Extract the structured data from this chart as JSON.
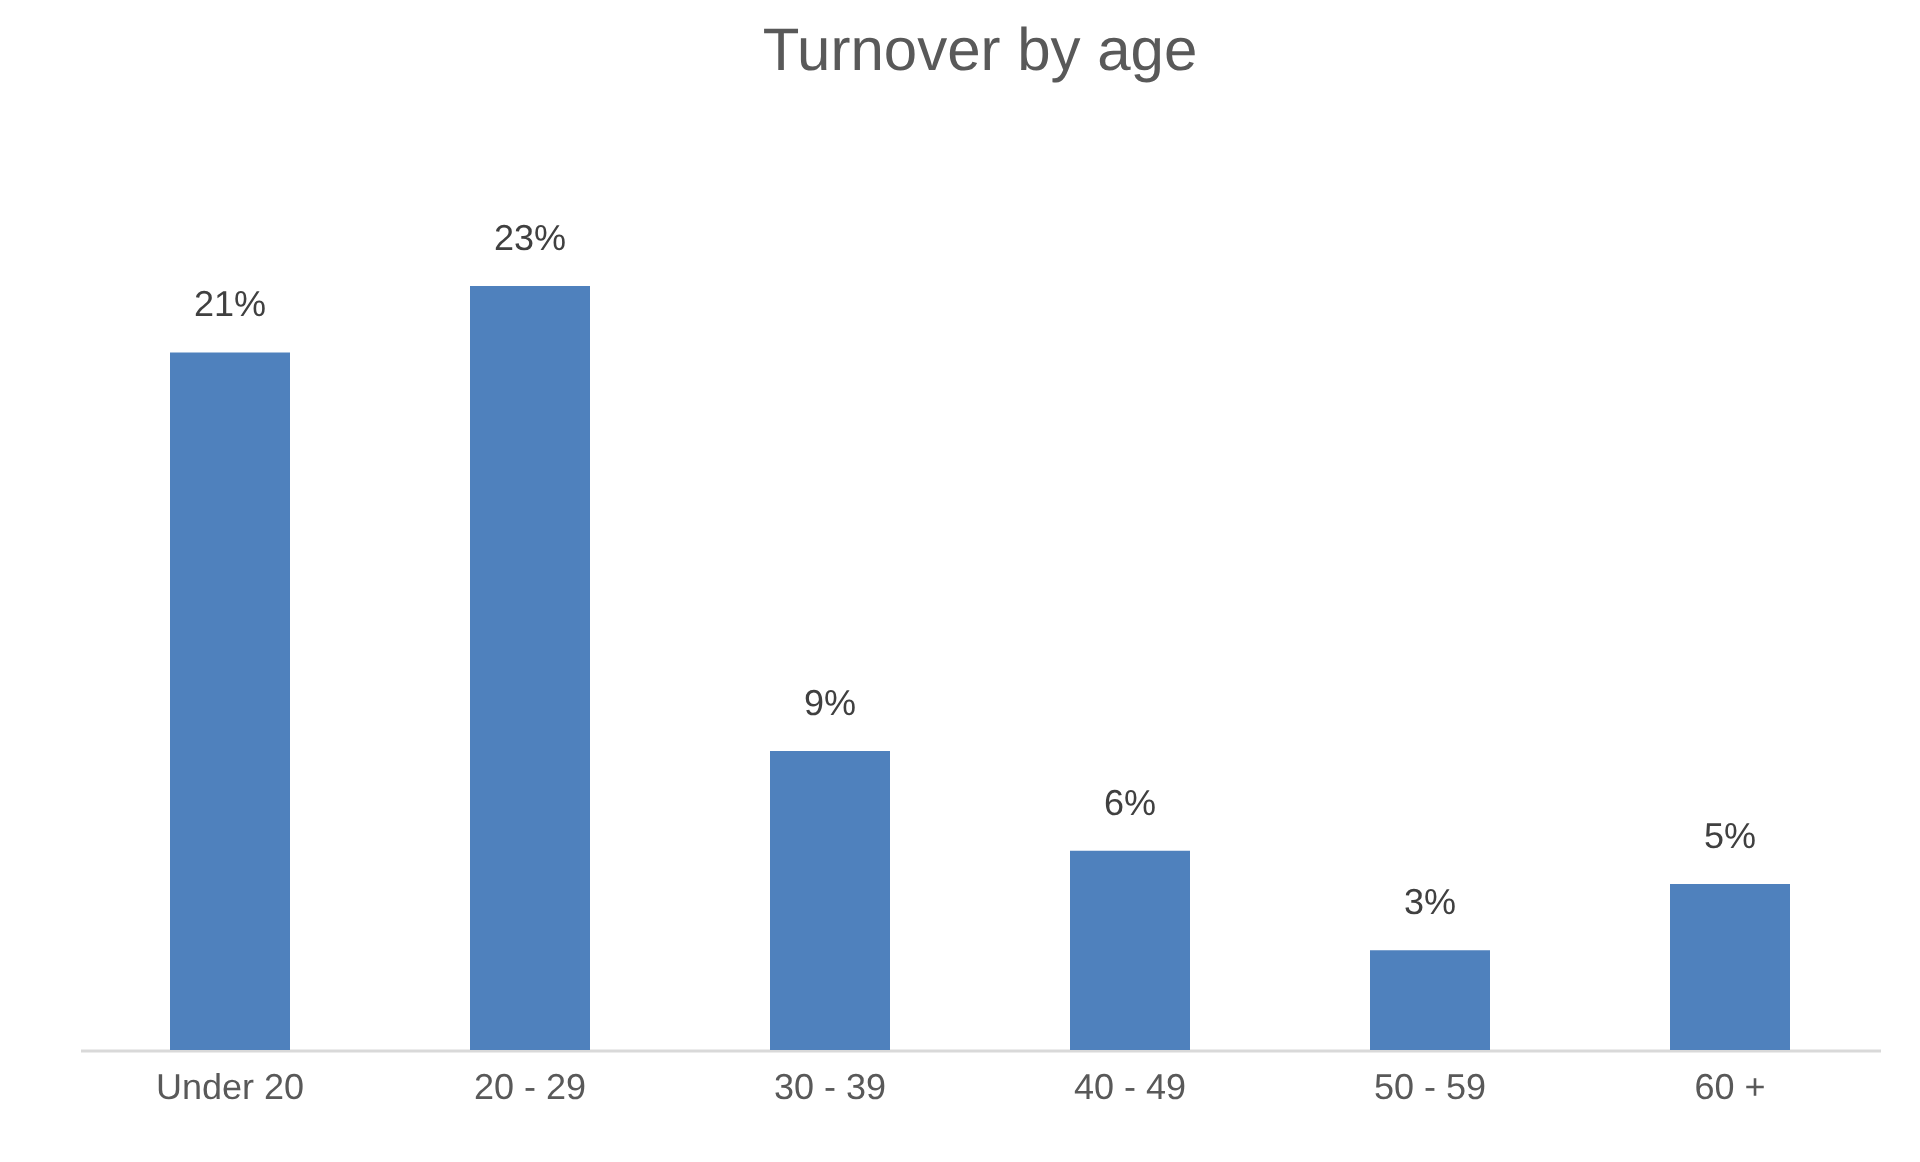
{
  "chart_data": {
    "type": "bar",
    "title": "Turnover by age",
    "categories": [
      "Under 20",
      "20 - 29",
      "30 - 39",
      "40 - 49",
      "50 - 59",
      "60 +"
    ],
    "values": [
      21,
      23,
      9,
      6,
      3,
      5
    ],
    "value_labels": [
      "21%",
      "23%",
      "9%",
      "6%",
      "3%",
      "5%"
    ],
    "color": "#4f81bd"
  }
}
